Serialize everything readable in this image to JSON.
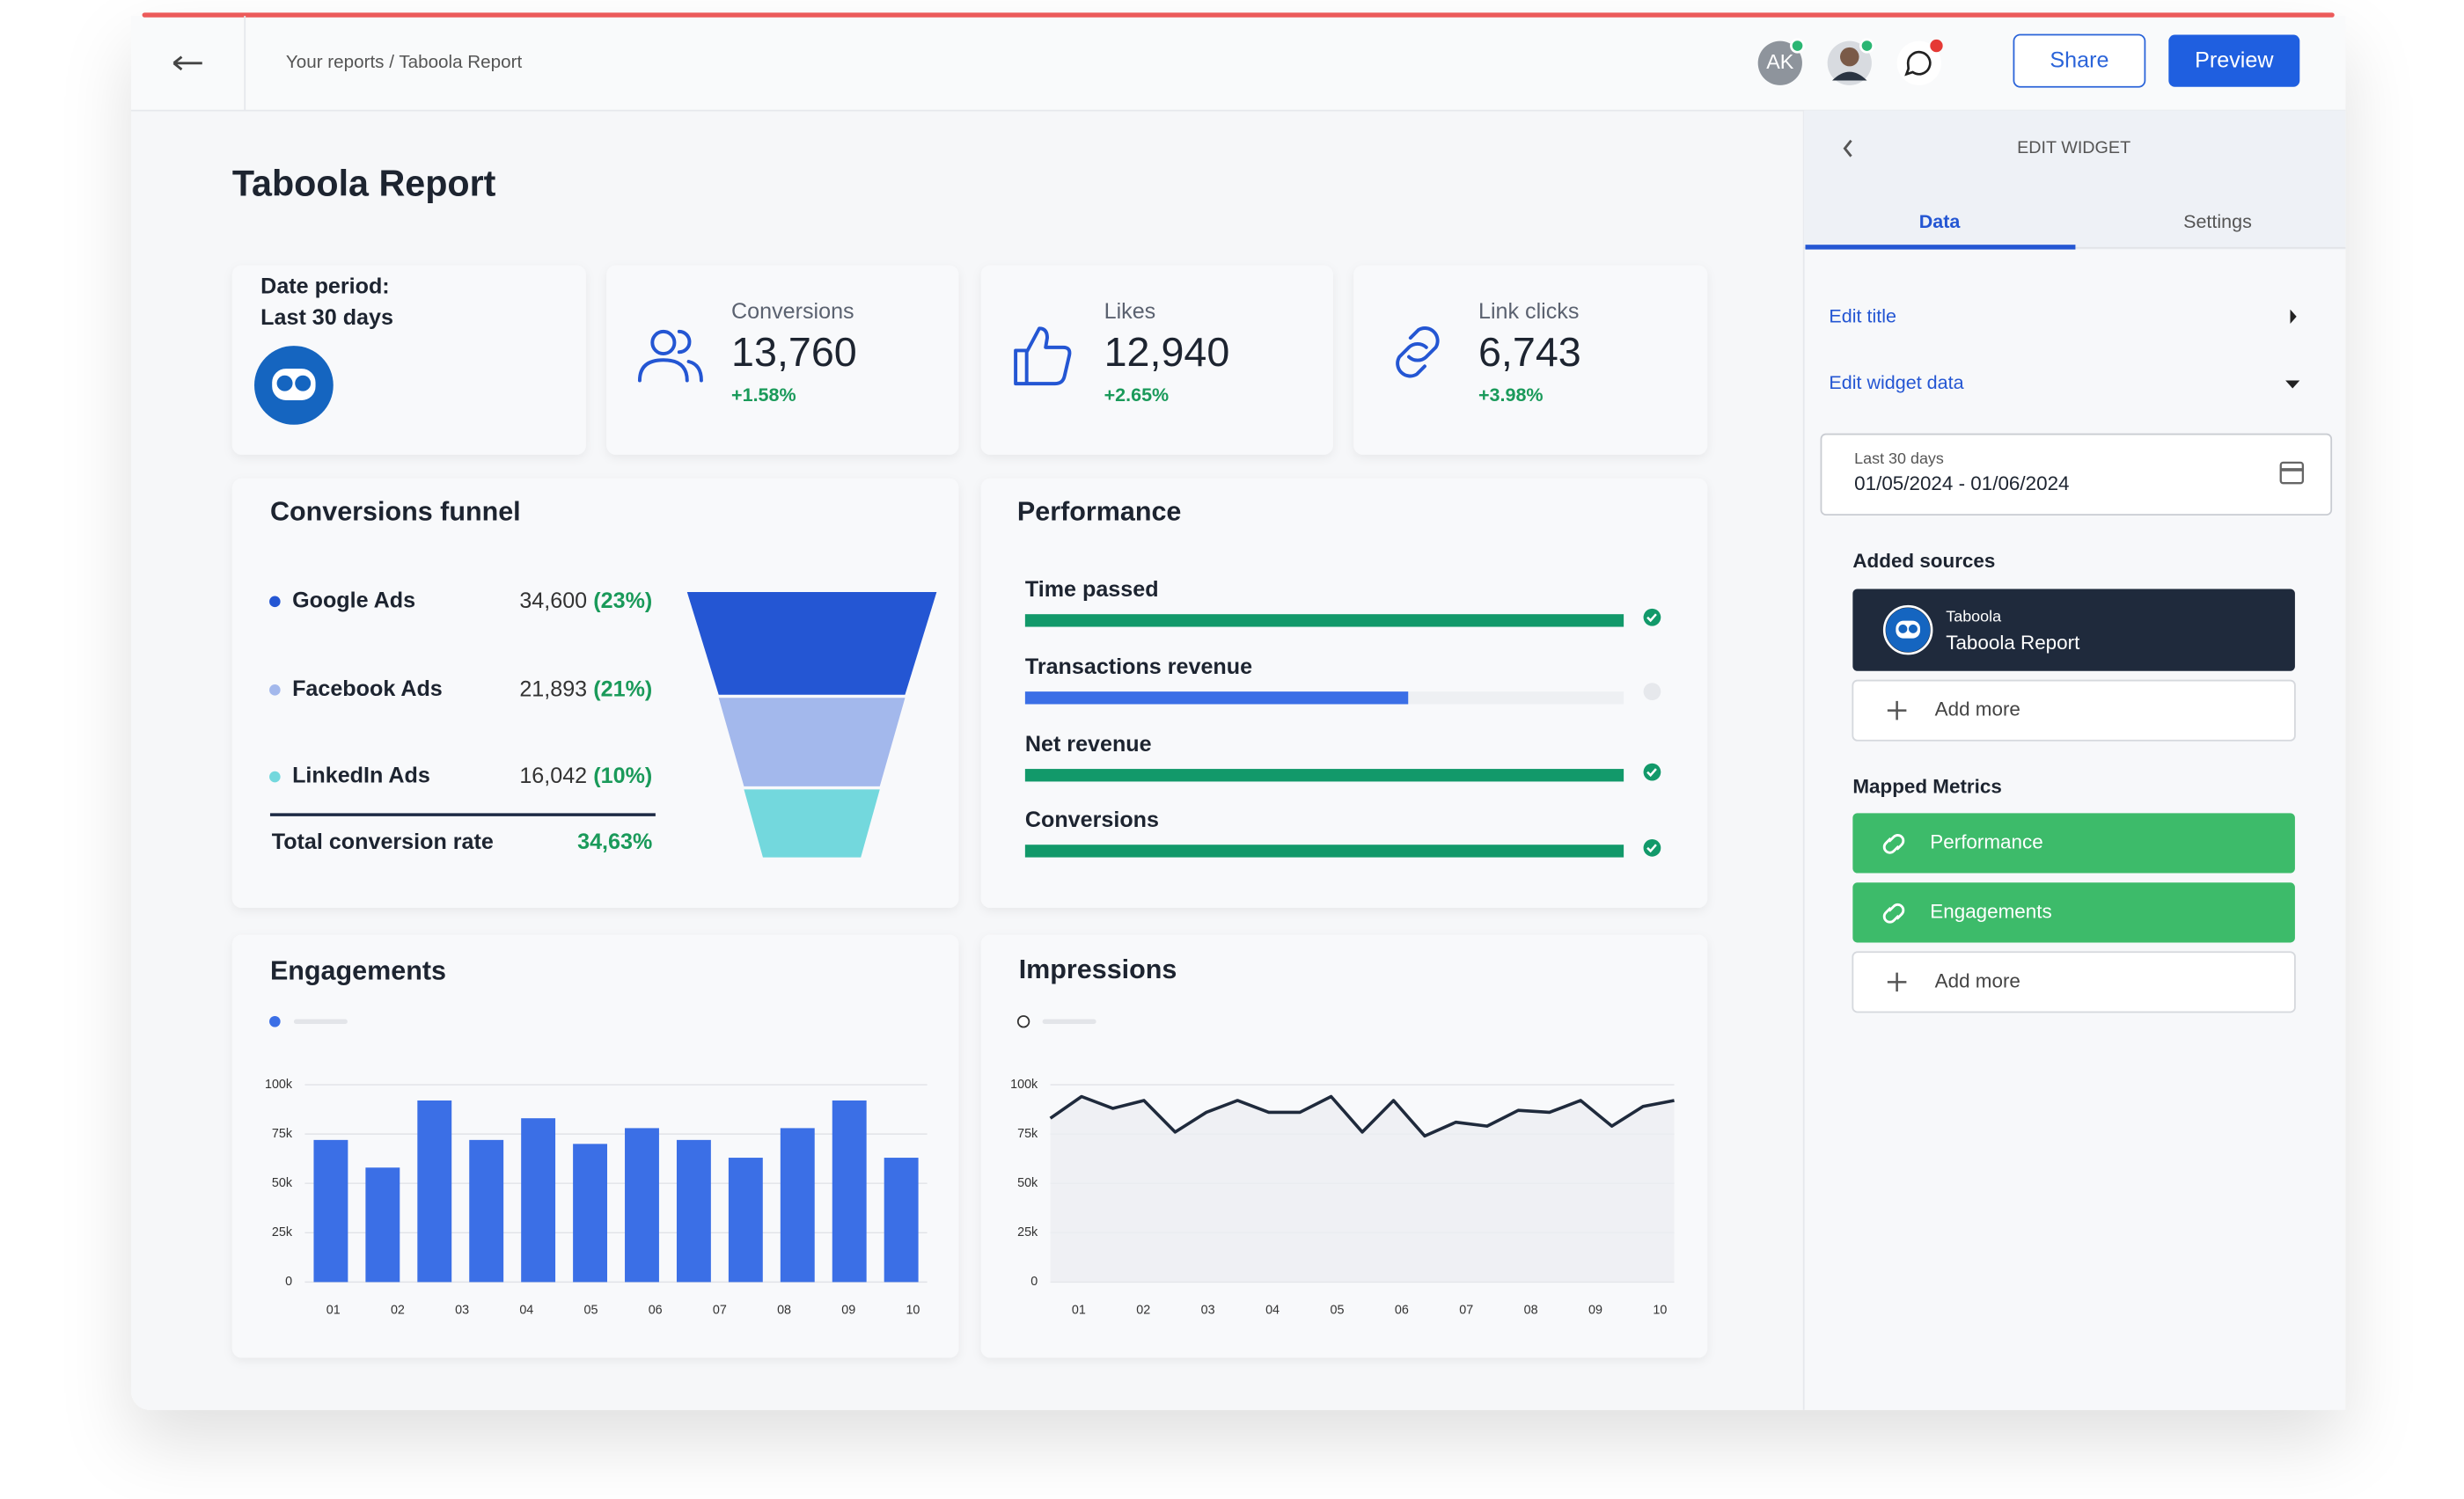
{
  "header": {
    "breadcrumb": "Your reports / Taboola Report",
    "avatar_initials": "AK",
    "share": "Share",
    "preview": "Preview"
  },
  "title": "Taboola Report",
  "date_period": {
    "label": "Date period:",
    "value": "Last 30 days"
  },
  "kpis": [
    {
      "label": "Conversions",
      "value": "13,760",
      "change": "+1.58%"
    },
    {
      "label": "Likes",
      "value": "12,940",
      "change": "+2.65%"
    },
    {
      "label": "Link clicks",
      "value": "6,743",
      "change": "+3.98%"
    }
  ],
  "funnel": {
    "title": "Conversions funnel",
    "colors": [
      "#2456d3",
      "#a3b8ec",
      "#73d8dd"
    ],
    "rows": [
      {
        "name": "Google Ads",
        "value": "34,600",
        "share": "(23%)"
      },
      {
        "name": "Facebook Ads",
        "value": "21,893",
        "share": "(21%)"
      },
      {
        "name": "LinkedIn Ads",
        "value": "16,042",
        "share": "(10%)"
      }
    ],
    "total_label": "Total conversion rate",
    "total_value": "34,63%"
  },
  "performance": {
    "title": "Performance",
    "rows": [
      {
        "name": "Time passed",
        "progress": 100,
        "done": true
      },
      {
        "name": "Transactions revenue",
        "progress": 64,
        "done": false
      },
      {
        "name": "Net revenue",
        "progress": 100,
        "done": true
      },
      {
        "name": "Conversions",
        "progress": 100,
        "done": true
      }
    ]
  },
  "engagements": {
    "type": "bar",
    "title": "Engagements",
    "color": "#3b6fe6",
    "values": [
      72000,
      58000,
      92000,
      72000,
      83000,
      70000,
      78000,
      72000,
      63000,
      78000,
      92000,
      63000
    ],
    "x_labels": [
      "01",
      "02",
      "03",
      "04",
      "05",
      "06",
      "07",
      "08",
      "09",
      "10"
    ],
    "ylim": [
      0,
      100000
    ],
    "yticks": [
      0,
      {
        "value": 25000,
        "label": "25k"
      },
      {
        "value": 50000,
        "label": "50k"
      },
      {
        "value": 75000,
        "label": "75k"
      },
      {
        "value": 100000,
        "label": "100k"
      }
    ],
    "grid": true
  },
  "impressions": {
    "type": "line",
    "title": "Impressions",
    "color": "#1f2a3c",
    "values": [
      83000,
      94000,
      88000,
      92000,
      76000,
      86000,
      92000,
      86000,
      86000,
      94000,
      76000,
      92000,
      74000,
      81000,
      79000,
      87000,
      86000,
      92000,
      79000,
      89000,
      92000
    ],
    "x_labels": [
      "01",
      "02",
      "03",
      "04",
      "05",
      "06",
      "07",
      "08",
      "09",
      "10"
    ],
    "ylim": [
      0,
      100000
    ],
    "yticks": [
      0,
      {
        "value": 25000,
        "label": "25k"
      },
      {
        "value": 50000,
        "label": "50k"
      },
      {
        "value": 75000,
        "label": "75k"
      },
      {
        "value": 100000,
        "label": "100k"
      }
    ],
    "grid": true
  },
  "panel": {
    "heading": "EDIT WIDGET",
    "tabs": [
      "Data",
      "Settings"
    ],
    "edit_title": "Edit title",
    "edit_widget_data": "Edit widget data",
    "date_caption": "Last 30 days",
    "date_range": "01/05/2024 - 01/06/2024",
    "added_sources": "Added sources",
    "source": {
      "name": "Taboola",
      "report": "Taboola Report"
    },
    "add_more": "Add more",
    "mapped_metrics": "Mapped Metrics",
    "metrics": [
      "Performance",
      "Engagements"
    ]
  }
}
